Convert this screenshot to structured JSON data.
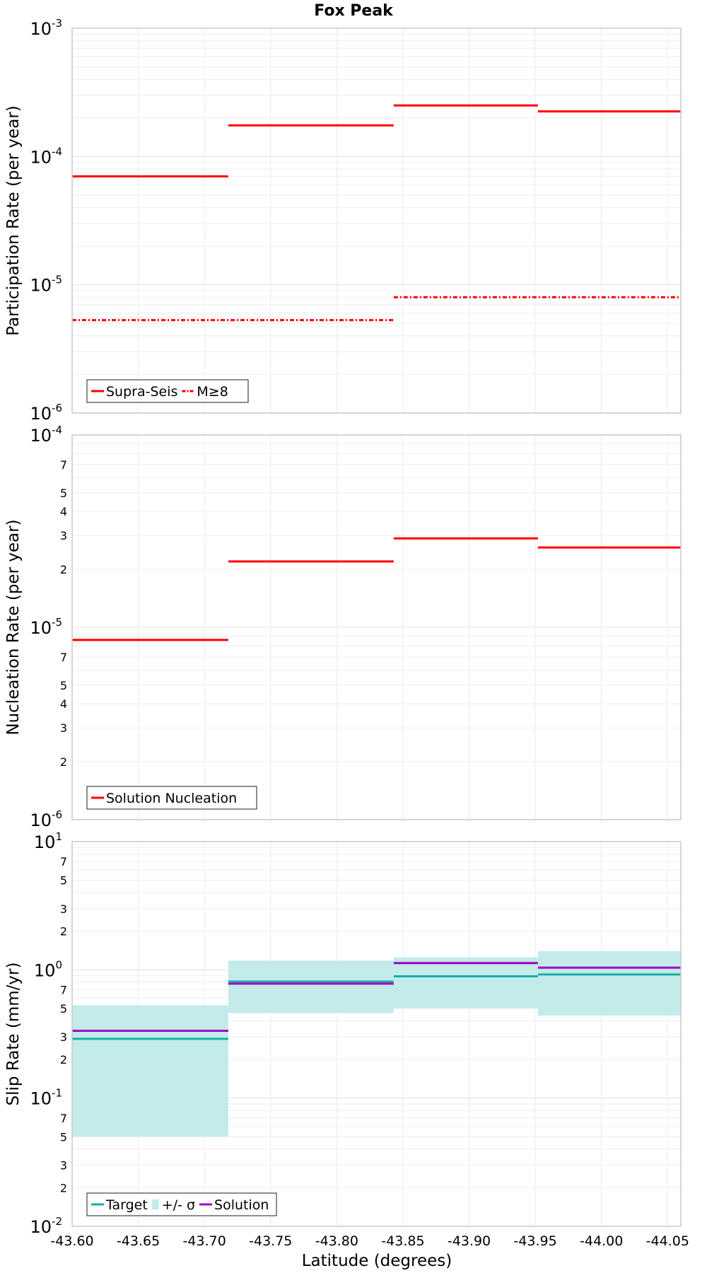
{
  "figure": {
    "title": "Fox Peak",
    "xlabel": "Latitude (degrees)"
  },
  "x_axis": {
    "range": [
      -43.6,
      -44.06
    ],
    "ticks": [
      {
        "value": -43.6,
        "label": "-43.60"
      },
      {
        "value": -43.65,
        "label": "-43.65"
      },
      {
        "value": -43.7,
        "label": "-43.70"
      },
      {
        "value": -43.75,
        "label": "-43.75"
      },
      {
        "value": -43.8,
        "label": "-43.80"
      },
      {
        "value": -43.85,
        "label": "-43.85"
      },
      {
        "value": -43.9,
        "label": "-43.90"
      },
      {
        "value": -43.95,
        "label": "-43.95"
      },
      {
        "value": -44.0,
        "label": "-44.00"
      },
      {
        "value": -44.05,
        "label": "-44.05"
      }
    ]
  },
  "chart_data": [
    {
      "type": "line",
      "xlabel": "Latitude (degrees)",
      "ylabel": "Participation Rate (per year)",
      "yscale": "log",
      "ylim": [
        1e-06,
        0.001
      ],
      "y_ticks": [
        {
          "value": 1e-06,
          "base": "10",
          "exp": "-6",
          "major": true
        },
        {
          "value": 1e-05,
          "base": "10",
          "exp": "-5",
          "major": true
        },
        {
          "value": 0.0001,
          "base": "10",
          "exp": "-4",
          "major": true
        },
        {
          "value": 0.001,
          "base": "10",
          "exp": "-3",
          "major": true
        }
      ],
      "grid": true,
      "legend_position": "bottom-left",
      "series": [
        {
          "name": "Supra-Seis",
          "color": "#ff0000",
          "dash": "solid",
          "segments": [
            {
              "x": [
                -43.6,
                -43.718
              ],
              "y": 7e-05
            },
            {
              "x": [
                -43.718,
                -43.843
              ],
              "y": 0.000175
            },
            {
              "x": [
                -43.843,
                -43.952
              ],
              "y": 0.00025
            },
            {
              "x": [
                -43.952,
                -44.06
              ],
              "y": 0.000225
            }
          ]
        },
        {
          "name": "M≥8",
          "color": "#ff0000",
          "dash": "dashdot",
          "segments": [
            {
              "x": [
                -43.6,
                -43.843
              ],
              "y": 5.3e-06
            },
            {
              "x": [
                -43.843,
                -44.06
              ],
              "y": 8e-06
            }
          ]
        }
      ]
    },
    {
      "type": "line",
      "xlabel": "Latitude (degrees)",
      "ylabel": "Nucleation Rate (per year)",
      "yscale": "log",
      "ylim": [
        1e-06,
        0.0001
      ],
      "y_ticks": [
        {
          "value": 1e-06,
          "base": "10",
          "exp": "-6",
          "major": true
        },
        {
          "value": 2e-06,
          "label": "2"
        },
        {
          "value": 3e-06,
          "label": "3"
        },
        {
          "value": 4e-06,
          "label": "4"
        },
        {
          "value": 5e-06,
          "label": "5"
        },
        {
          "value": 7e-06,
          "label": "7"
        },
        {
          "value": 1e-05,
          "base": "10",
          "exp": "-5",
          "major": true
        },
        {
          "value": 2e-05,
          "label": "2"
        },
        {
          "value": 3e-05,
          "label": "3"
        },
        {
          "value": 4e-05,
          "label": "4"
        },
        {
          "value": 5e-05,
          "label": "5"
        },
        {
          "value": 7e-05,
          "label": "7"
        },
        {
          "value": 0.0001,
          "base": "10",
          "exp": "-4",
          "major": true
        }
      ],
      "grid": true,
      "legend_position": "bottom-left",
      "series": [
        {
          "name": "Solution Nucleation",
          "color": "#ff0000",
          "dash": "solid",
          "segments": [
            {
              "x": [
                -43.6,
                -43.718
              ],
              "y": 8.6e-06
            },
            {
              "x": [
                -43.718,
                -43.843
              ],
              "y": 2.2e-05
            },
            {
              "x": [
                -43.843,
                -43.952
              ],
              "y": 2.9e-05
            },
            {
              "x": [
                -43.952,
                -44.06
              ],
              "y": 2.6e-05
            }
          ]
        }
      ]
    },
    {
      "type": "line",
      "xlabel": "Latitude (degrees)",
      "ylabel": "Slip Rate (mm/yr)",
      "yscale": "log",
      "ylim": [
        0.01,
        10
      ],
      "y_ticks": [
        {
          "value": 0.01,
          "base": "10",
          "exp": "-2",
          "major": true
        },
        {
          "value": 0.02,
          "label": "2"
        },
        {
          "value": 0.03,
          "label": "3"
        },
        {
          "value": 0.05,
          "label": "5"
        },
        {
          "value": 0.07,
          "label": "7"
        },
        {
          "value": 0.1,
          "base": "10",
          "exp": "-1",
          "major": true
        },
        {
          "value": 0.2,
          "label": "2"
        },
        {
          "value": 0.3,
          "label": "3"
        },
        {
          "value": 0.5,
          "label": "5"
        },
        {
          "value": 0.7,
          "label": "7"
        },
        {
          "value": 1,
          "base": "10",
          "exp": "0",
          "major": true
        },
        {
          "value": 2,
          "label": "2"
        },
        {
          "value": 3,
          "label": "3"
        },
        {
          "value": 5,
          "label": "5"
        },
        {
          "value": 7,
          "label": "7"
        },
        {
          "value": 10,
          "base": "10",
          "exp": "1",
          "major": true
        }
      ],
      "grid": true,
      "legend_position": "bottom-left",
      "bands": [
        {
          "name": "+/- σ",
          "color": "#c2ebea",
          "segments": [
            {
              "x": [
                -43.6,
                -43.718
              ],
              "low": 0.05,
              "high": 0.53
            },
            {
              "x": [
                -43.718,
                -43.843
              ],
              "low": 0.46,
              "high": 1.18
            },
            {
              "x": [
                -43.843,
                -43.952
              ],
              "low": 0.5,
              "high": 1.25
            },
            {
              "x": [
                -43.952,
                -44.06
              ],
              "low": 0.44,
              "high": 1.4
            }
          ]
        }
      ],
      "series": [
        {
          "name": "Target",
          "color": "#1aaea5",
          "dash": "solid",
          "segments": [
            {
              "x": [
                -43.6,
                -43.718
              ],
              "y": 0.29
            },
            {
              "x": [
                -43.718,
                -43.843
              ],
              "y": 0.81
            },
            {
              "x": [
                -43.843,
                -43.952
              ],
              "y": 0.89
            },
            {
              "x": [
                -43.952,
                -44.06
              ],
              "y": 0.92
            }
          ]
        },
        {
          "name": "Solution",
          "color": "#a100c8",
          "dash": "solid",
          "segments": [
            {
              "x": [
                -43.6,
                -43.718
              ],
              "y": 0.335
            },
            {
              "x": [
                -43.718,
                -43.843
              ],
              "y": 0.78
            },
            {
              "x": [
                -43.843,
                -43.952
              ],
              "y": 1.13
            },
            {
              "x": [
                -43.952,
                -44.06
              ],
              "y": 1.04
            }
          ]
        }
      ]
    }
  ]
}
